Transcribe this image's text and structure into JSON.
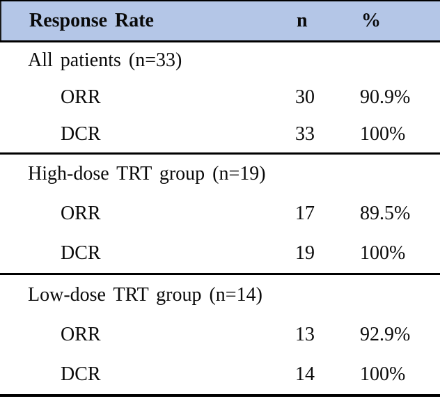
{
  "table": {
    "header": {
      "label": "Response Rate",
      "n": "n",
      "pct": "%"
    },
    "sections": [
      {
        "label": "All patients (n=33)",
        "rows": [
          {
            "name": "ORR",
            "n": "30",
            "pct": "90.9%"
          },
          {
            "name": "DCR",
            "n": "33",
            "pct": "100%"
          }
        ]
      },
      {
        "label": "High-dose TRT group (n=19)",
        "rows": [
          {
            "name": "ORR",
            "n": "17",
            "pct": "89.5%"
          },
          {
            "name": "DCR",
            "n": "19",
            "pct": "100%"
          }
        ]
      },
      {
        "label": "Low-dose TRT group (n=14)",
        "rows": [
          {
            "name": "ORR",
            "n": "13",
            "pct": "92.9%"
          },
          {
            "name": "DCR",
            "n": "14",
            "pct": "100%"
          }
        ]
      }
    ],
    "colors": {
      "header_bg": "#b4c6e7",
      "border": "#000000",
      "text": "#0a0a0a"
    }
  }
}
